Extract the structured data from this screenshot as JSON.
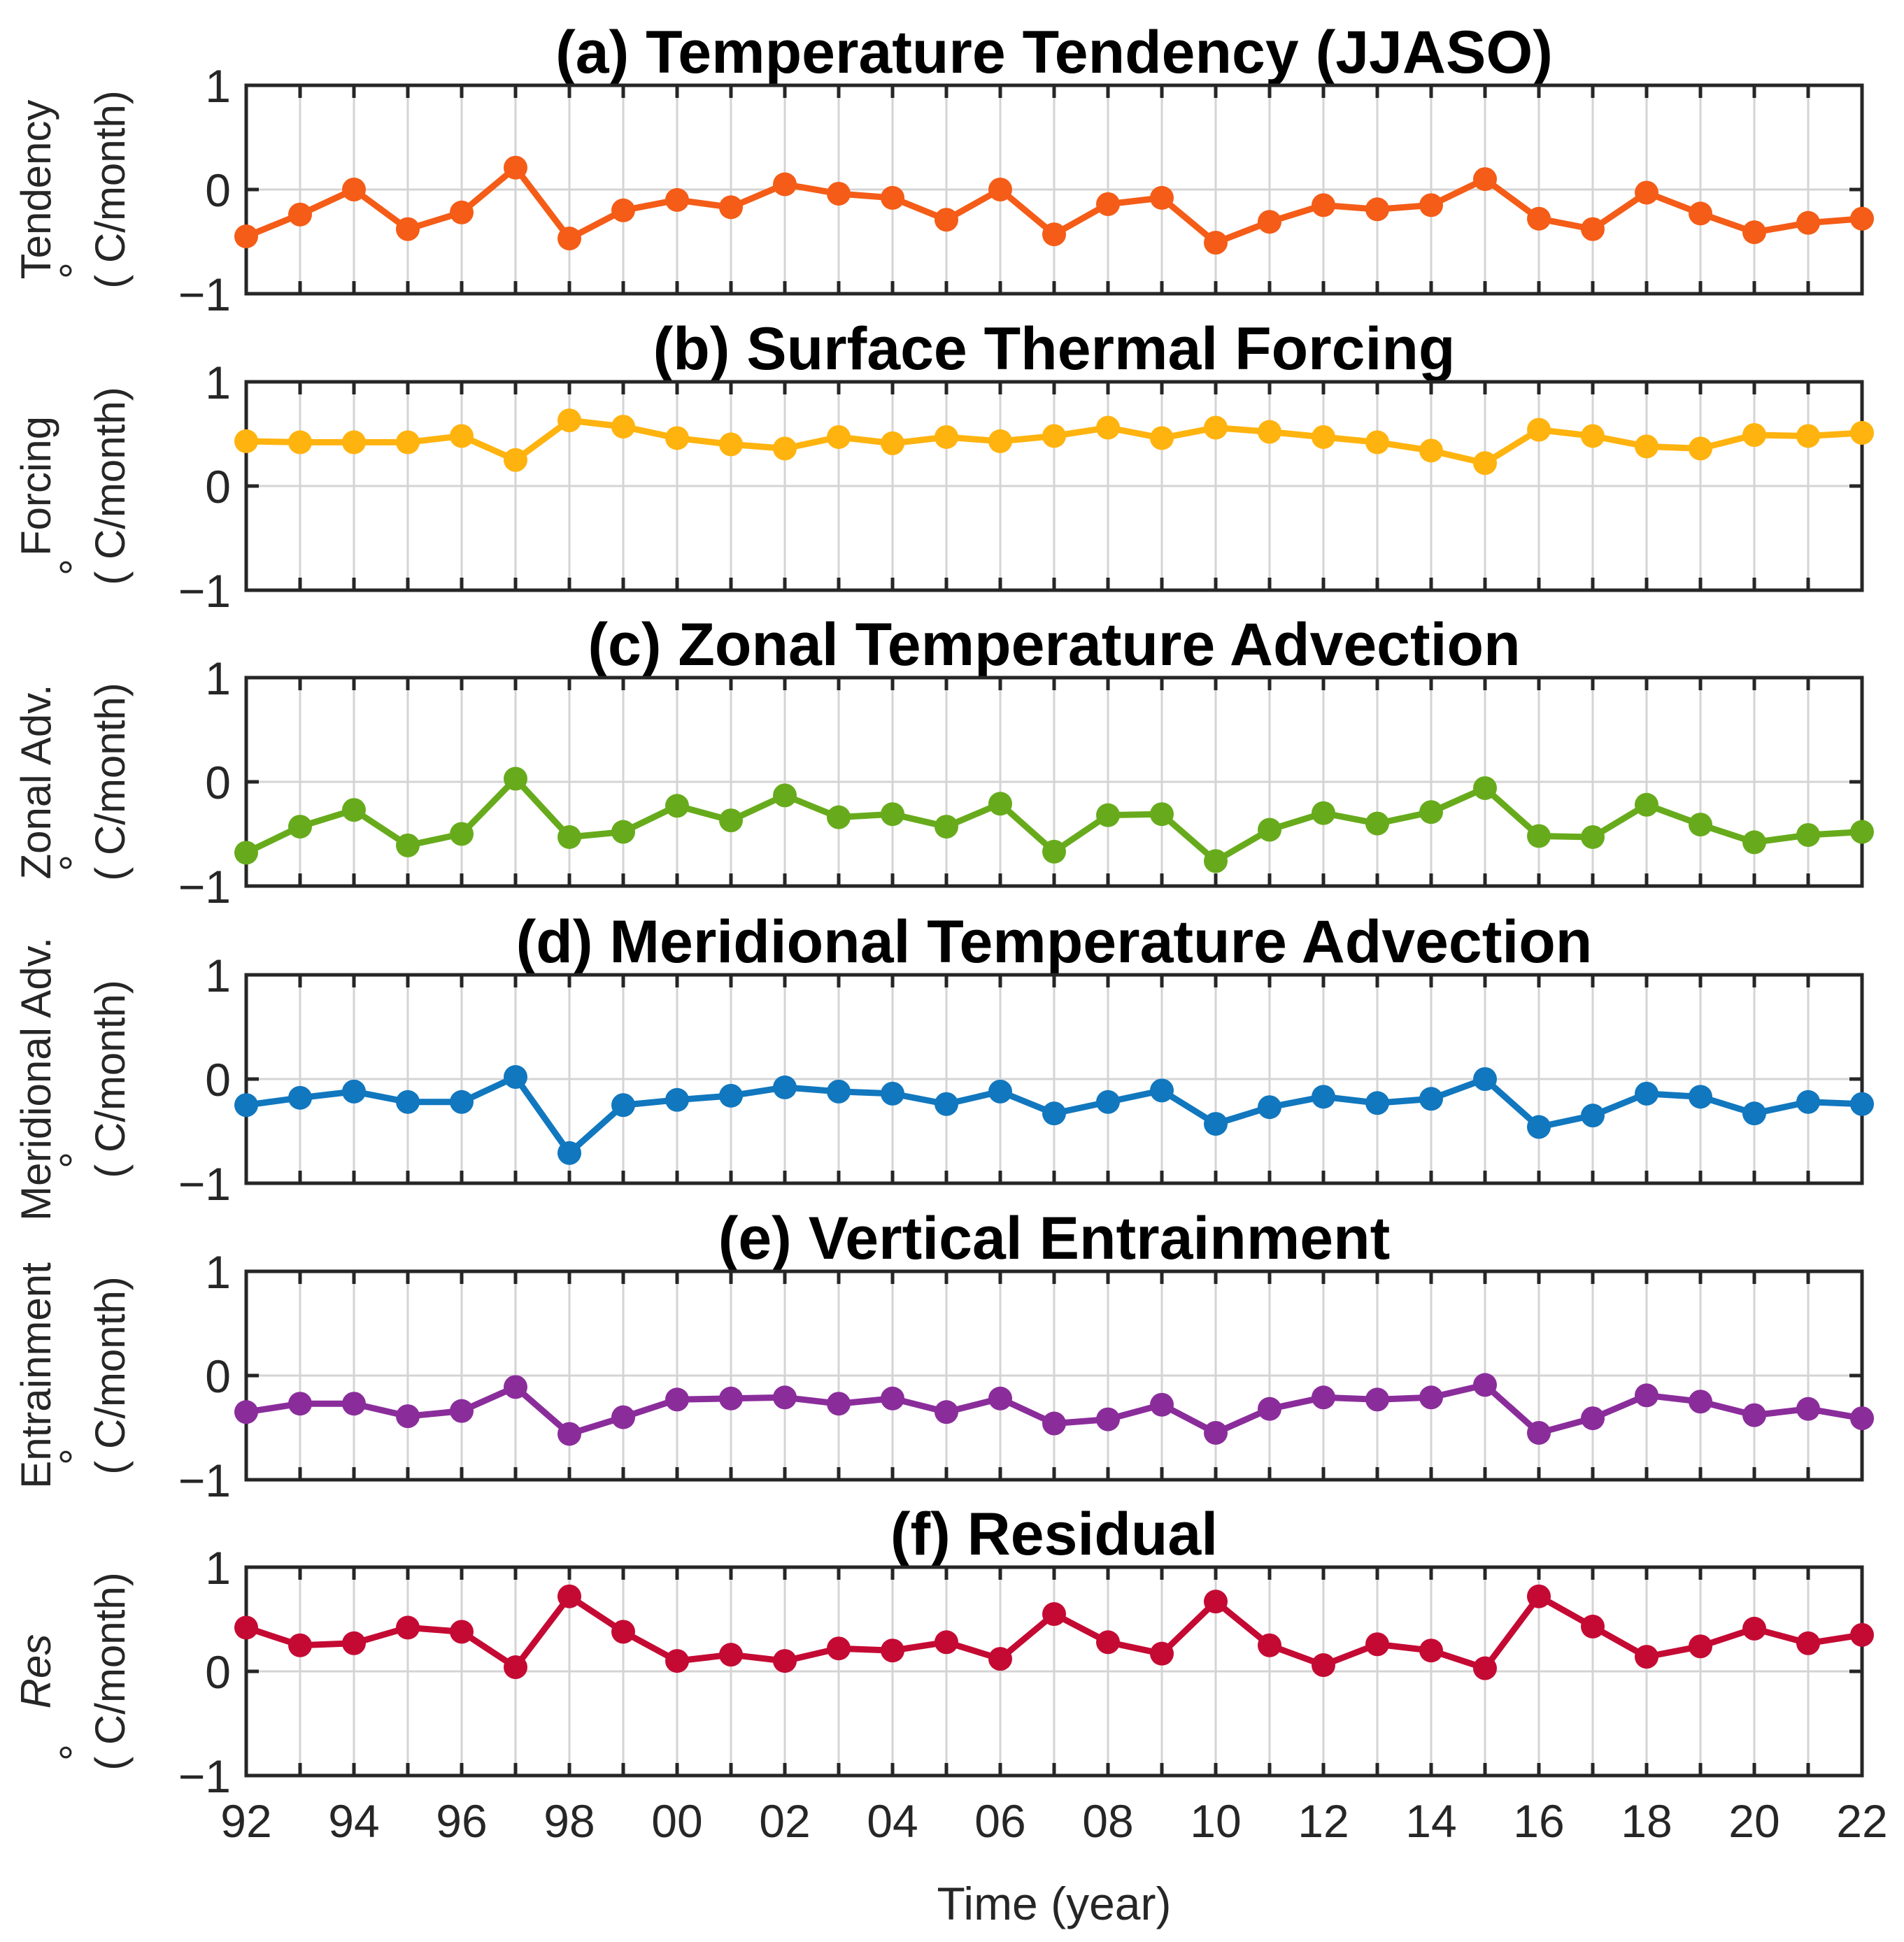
{
  "chart_data": [
    {
      "type": "line",
      "panel": "a",
      "title": "(a) Temperature Tendency (JJASO)",
      "ylabel_name": "Tendency",
      "ylabel_name_italic": false,
      "ylabel_unit_deg": "°",
      "ylabel_unit": "(   C/month)",
      "color": "#F45C17",
      "ylim": [
        -1,
        1
      ],
      "yticks": [
        "1",
        "0",
        "−1"
      ],
      "values": [
        -0.45,
        -0.24,
        0.0,
        -0.38,
        -0.22,
        0.21,
        -0.47,
        -0.2,
        -0.1,
        -0.17,
        0.05,
        -0.04,
        -0.08,
        -0.29,
        0.0,
        -0.43,
        -0.14,
        -0.08,
        -0.51,
        -0.31,
        -0.15,
        -0.19,
        -0.15,
        0.1,
        -0.28,
        -0.38,
        -0.03,
        -0.23,
        -0.41,
        -0.32,
        -0.28
      ]
    },
    {
      "type": "line",
      "panel": "b",
      "title": "(b) Surface Thermal Forcing",
      "ylabel_name": "Forcing",
      "ylabel_name_italic": false,
      "ylabel_unit_deg": "°",
      "ylabel_unit": "(   C/month)",
      "color": "#FFB30F",
      "ylim": [
        -1,
        1
      ],
      "yticks": [
        "1",
        "0",
        "−1"
      ],
      "values": [
        0.43,
        0.42,
        0.42,
        0.42,
        0.48,
        0.25,
        0.63,
        0.57,
        0.46,
        0.4,
        0.36,
        0.47,
        0.41,
        0.47,
        0.43,
        0.48,
        0.56,
        0.46,
        0.56,
        0.52,
        0.47,
        0.42,
        0.34,
        0.22,
        0.54,
        0.48,
        0.38,
        0.36,
        0.49,
        0.48,
        0.51
      ]
    },
    {
      "type": "line",
      "panel": "c",
      "title": "(c) Zonal Temperature Advection",
      "ylabel_name": "Zonal Adv.",
      "ylabel_name_italic": false,
      "ylabel_unit_deg": "°",
      "ylabel_unit": "(   C/month)",
      "color": "#67AB1C",
      "ylim": [
        -1,
        1
      ],
      "yticks": [
        "1",
        "0",
        "−1"
      ],
      "values": [
        -0.68,
        -0.43,
        -0.27,
        -0.61,
        -0.5,
        0.03,
        -0.53,
        -0.48,
        -0.23,
        -0.37,
        -0.13,
        -0.34,
        -0.31,
        -0.43,
        -0.21,
        -0.67,
        -0.32,
        -0.31,
        -0.76,
        -0.46,
        -0.3,
        -0.4,
        -0.29,
        -0.06,
        -0.52,
        -0.53,
        -0.22,
        -0.41,
        -0.58,
        -0.51,
        -0.48
      ]
    },
    {
      "type": "line",
      "panel": "d",
      "title": "(d) Meridional Temperature Advection",
      "ylabel_name": "Meridional Adv.",
      "ylabel_name_italic": false,
      "ylabel_unit_deg": "°",
      "ylabel_unit": "(   C/month)",
      "color": "#1177BE",
      "ylim": [
        -1,
        1
      ],
      "yticks": [
        "1",
        "0",
        "−1"
      ],
      "values": [
        -0.25,
        -0.18,
        -0.12,
        -0.22,
        -0.22,
        0.02,
        -0.71,
        -0.25,
        -0.2,
        -0.16,
        -0.08,
        -0.12,
        -0.14,
        -0.24,
        -0.12,
        -0.33,
        -0.22,
        -0.11,
        -0.43,
        -0.27,
        -0.17,
        -0.23,
        -0.19,
        0.0,
        -0.46,
        -0.35,
        -0.14,
        -0.17,
        -0.33,
        -0.22,
        -0.24
      ]
    },
    {
      "type": "line",
      "panel": "e",
      "title": "(e) Vertical Entrainment",
      "ylabel_name": "Entrainment",
      "ylabel_name_italic": false,
      "ylabel_unit_deg": "°",
      "ylabel_unit": "(   C/month)",
      "color": "#8A2D9B",
      "ylim": [
        -1,
        1
      ],
      "yticks": [
        "1",
        "0",
        "−1"
      ],
      "values": [
        -0.35,
        -0.27,
        -0.27,
        -0.39,
        -0.34,
        -0.11,
        -0.56,
        -0.4,
        -0.23,
        -0.22,
        -0.21,
        -0.27,
        -0.22,
        -0.35,
        -0.22,
        -0.46,
        -0.42,
        -0.28,
        -0.55,
        -0.32,
        -0.21,
        -0.23,
        -0.21,
        -0.09,
        -0.55,
        -0.41,
        -0.19,
        -0.25,
        -0.38,
        -0.32,
        -0.41
      ]
    },
    {
      "type": "line",
      "panel": "f",
      "title": "(f) Residual",
      "ylabel_name": "Res",
      "ylabel_name_italic": true,
      "ylabel_unit_deg": "°",
      "ylabel_unit": "(   C/month)",
      "color": "#C40A33",
      "ylim": [
        -1,
        1
      ],
      "yticks": [
        "1",
        "0",
        "−1"
      ],
      "values": [
        0.42,
        0.25,
        0.27,
        0.42,
        0.38,
        0.04,
        0.72,
        0.38,
        0.1,
        0.16,
        0.1,
        0.22,
        0.2,
        0.28,
        0.12,
        0.55,
        0.28,
        0.17,
        0.67,
        0.25,
        0.06,
        0.26,
        0.2,
        0.03,
        0.72,
        0.43,
        0.14,
        0.24,
        0.41,
        0.27,
        0.35
      ]
    }
  ],
  "x_years": [
    "92",
    "93",
    "94",
    "95",
    "96",
    "97",
    "98",
    "99",
    "00",
    "01",
    "02",
    "03",
    "04",
    "05",
    "06",
    "07",
    "08",
    "09",
    "10",
    "11",
    "12",
    "13",
    "14",
    "15",
    "16",
    "17",
    "18",
    "19",
    "20",
    "21",
    "22"
  ],
  "xtick_labels": [
    "92",
    "94",
    "96",
    "98",
    "00",
    "02",
    "04",
    "06",
    "08",
    "10",
    "12",
    "14",
    "16",
    "18",
    "20",
    "22"
  ],
  "xlabel": "Time (year)"
}
